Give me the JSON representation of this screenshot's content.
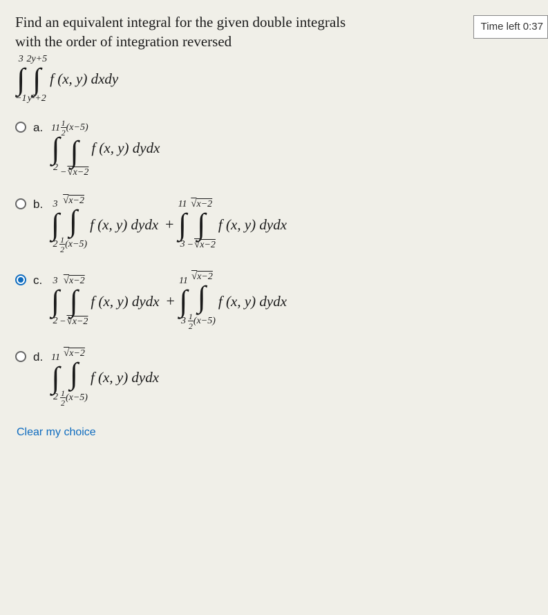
{
  "timer": {
    "label": "Time left 0:37"
  },
  "question": {
    "line1": "Find an equivalent integral for the given double integrals",
    "line2": "with the order of integration reversed"
  },
  "given_integral": {
    "outer_upper": "3",
    "outer_lower": "−1",
    "inner_upper": "2y+5",
    "inner_lower": "y²+2",
    "integrand": "f (x, y) dxdy"
  },
  "options": [
    {
      "id": "a",
      "letter": "a.",
      "selected": false,
      "parts": [
        {
          "o_up": "11",
          "o_lo": "2",
          "i_up_type": "frac-expr",
          "i_up_num": "1",
          "i_up_den": "2",
          "i_up_tail": "(x−5)",
          "i_lo_type": "neg-sqrt",
          "i_lo_txt": "x−2",
          "integrand": "f (x, y) dydx"
        }
      ]
    },
    {
      "id": "b",
      "letter": "b.",
      "selected": false,
      "parts": [
        {
          "o_up": "3",
          "o_lo": "2",
          "i_up_type": "sqrt",
          "i_up_txt": "x−2",
          "i_lo_type": "frac-expr",
          "i_lo_num": "1",
          "i_lo_den": "2",
          "i_lo_tail": "(x−5)",
          "integrand": "f (x, y) dydx"
        },
        {
          "o_up": "11",
          "o_lo": "3",
          "i_up_type": "sqrt",
          "i_up_txt": "x−2",
          "i_lo_type": "neg-sqrt",
          "i_lo_txt": "x−2",
          "integrand": "f (x, y) dydx"
        }
      ]
    },
    {
      "id": "c",
      "letter": "c.",
      "selected": true,
      "parts": [
        {
          "o_up": "3",
          "o_lo": "2",
          "i_up_type": "sqrt",
          "i_up_txt": "x−2",
          "i_lo_type": "neg-sqrt",
          "i_lo_txt": "x−2",
          "integrand": "f (x, y) dydx"
        },
        {
          "o_up": "11",
          "o_lo": "3",
          "i_up_type": "sqrt",
          "i_up_txt": "x−2",
          "i_lo_type": "frac-expr",
          "i_lo_num": "1",
          "i_lo_den": "2",
          "i_lo_tail": "(x−5)",
          "integrand": "f (x, y) dydx"
        }
      ]
    },
    {
      "id": "d",
      "letter": "d.",
      "selected": false,
      "parts": [
        {
          "o_up": "11",
          "o_lo": "2",
          "i_up_type": "sqrt",
          "i_up_txt": "x−2",
          "i_lo_type": "frac-expr",
          "i_lo_num": "1",
          "i_lo_den": "2",
          "i_lo_tail": "(x−5)",
          "integrand": "f (x, y) dydx"
        }
      ]
    }
  ],
  "clear_label": "Clear my choice",
  "colors": {
    "accent": "#0f6cbf",
    "bg": "#f0efe8",
    "text": "#1a1a1a"
  }
}
